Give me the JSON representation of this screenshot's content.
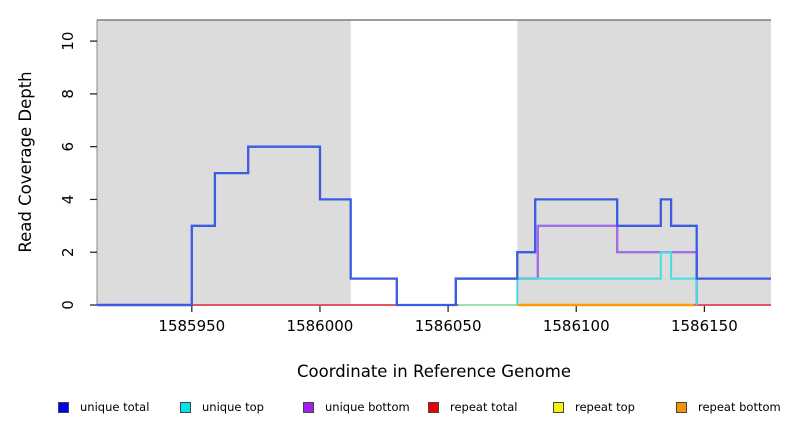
{
  "axes": {
    "x": {
      "label": "Coordinate in Reference Genome"
    },
    "y": {
      "label": "Read Coverage Depth"
    }
  },
  "chart_data": {
    "type": "line",
    "subtype": "step-coverage",
    "title": "",
    "xlabel": "Coordinate in Reference Genome",
    "ylabel": "Read Coverage Depth",
    "xlim": [
      1585913,
      1586176
    ],
    "ylim": [
      0,
      10.8
    ],
    "x_ticks": [
      1585950,
      1586000,
      1586050,
      1586100,
      1586150
    ],
    "y_ticks": [
      0,
      2,
      4,
      6,
      8,
      10
    ],
    "grid": false,
    "plot_top_border_color": "#7f7f7f",
    "shaded_regions": [
      {
        "x_start": 1585913,
        "x_end": 1586012,
        "fill": "#dcdcdc"
      },
      {
        "x_start": 1586077,
        "x_end": 1586176,
        "fill": "#dcdcdc"
      }
    ],
    "series": [
      {
        "name": "repeat total",
        "line_color": "#e25563",
        "width": 2,
        "paths": [
          [
            [
              1585950,
              0
            ],
            [
              1586176,
              0
            ]
          ]
        ]
      },
      {
        "name": "repeat top",
        "line_color": "#9be3a6",
        "width": 2,
        "note": "visible as pale green where it overlaps unique top at depth 0",
        "paths": [
          [
            [
              1586054,
              0
            ],
            [
              1586077,
              0
            ]
          ]
        ]
      },
      {
        "name": "repeat bottom",
        "line_color": "#ff9d00",
        "width": 2.4,
        "paths": [
          [
            [
              1586077,
              0
            ],
            [
              1586146,
              0
            ]
          ]
        ]
      },
      {
        "name": "unique bottom",
        "line_color": "#a46de8",
        "width": 2.4,
        "paths": [
          [
            [
              1585913,
              0
            ],
            [
              1585950,
              0
            ]
          ],
          [
            [
              1586053,
              0
            ],
            [
              1586053,
              1
            ],
            [
              1586085,
              1
            ],
            [
              1586085,
              3
            ],
            [
              1586116,
              3
            ],
            [
              1586116,
              2
            ],
            [
              1586147,
              2
            ],
            [
              1586147,
              0
            ]
          ]
        ]
      },
      {
        "name": "unique top",
        "line_color": "#45dede",
        "width": 2,
        "paths": [
          [
            [
              1586077,
              0
            ],
            [
              1586077,
              1
            ],
            [
              1586133,
              1
            ],
            [
              1586133,
              2
            ],
            [
              1586137,
              2
            ],
            [
              1586137,
              1
            ],
            [
              1586147,
              1
            ],
            [
              1586147,
              0
            ]
          ]
        ]
      },
      {
        "name": "unique total",
        "line_color": "#3b5be0",
        "width": 2.3,
        "paths": [
          [
            [
              1585913,
              0
            ],
            [
              1585950,
              0
            ],
            [
              1585950,
              3
            ],
            [
              1585959,
              3
            ],
            [
              1585959,
              5
            ],
            [
              1585972,
              5
            ],
            [
              1585972,
              6
            ],
            [
              1586000,
              6
            ],
            [
              1586000,
              4
            ],
            [
              1586012,
              4
            ],
            [
              1586012,
              1
            ],
            [
              1586030,
              1
            ],
            [
              1586030,
              0
            ],
            [
              1586053,
              0
            ],
            [
              1586053,
              1
            ],
            [
              1586077,
              1
            ],
            [
              1586077,
              2
            ],
            [
              1586084,
              2
            ],
            [
              1586084,
              4
            ],
            [
              1586116,
              4
            ],
            [
              1586116,
              3
            ],
            [
              1586133,
              3
            ],
            [
              1586133,
              4
            ],
            [
              1586137,
              4
            ],
            [
              1586137,
              3
            ],
            [
              1586147,
              3
            ],
            [
              1586147,
              1
            ],
            [
              1586176,
              1
            ]
          ]
        ]
      }
    ]
  },
  "legend": {
    "items": [
      {
        "label": "unique total",
        "color": "#0000ee"
      },
      {
        "label": "unique top",
        "color": "#00e6e6"
      },
      {
        "label": "unique bottom",
        "color": "#a020f0"
      },
      {
        "label": "repeat total",
        "color": "#ee0000"
      },
      {
        "label": "repeat top",
        "color": "#f2f20a"
      },
      {
        "label": "repeat bottom",
        "color": "#f59300"
      }
    ]
  }
}
